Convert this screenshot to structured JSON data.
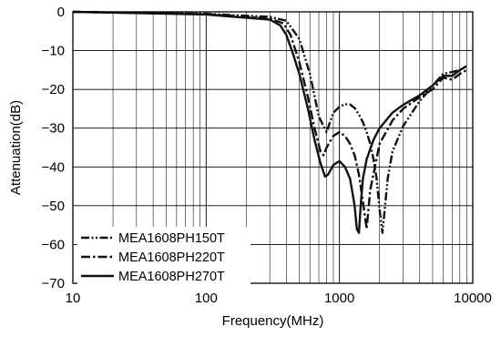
{
  "chart_data": {
    "type": "line",
    "title": "",
    "xlabel": "Frequency(MHz)",
    "ylabel": "Attenuation(dB)",
    "x_scale": "log",
    "xlim": [
      10,
      10000
    ],
    "ylim": [
      -70,
      0
    ],
    "x_ticks": [
      10,
      100,
      1000,
      10000
    ],
    "x_tick_labels": [
      "10",
      "100",
      "1000",
      "10000"
    ],
    "y_ticks": [
      0,
      -10,
      -20,
      -30,
      -40,
      -50,
      -60,
      -70
    ],
    "y_tick_labels": [
      "0",
      "−10",
      "−20",
      "−30",
      "−40",
      "−50",
      "−60",
      "−70"
    ],
    "grid": true,
    "legend_position": "bottom-left",
    "series": [
      {
        "name": "MEA1608PH150T",
        "line_style": "dash-dot-dot",
        "x": [
          10,
          100,
          300,
          400,
          500,
          600,
          700,
          800,
          900,
          1000,
          1100,
          1200,
          1300,
          1400,
          1500,
          1600,
          1700,
          1800,
          1900,
          2000,
          2100,
          2200,
          2300,
          2500,
          3000,
          3500,
          4000,
          4500,
          5000,
          6000,
          7000,
          8000,
          9000
        ],
        "y": [
          0,
          -0.5,
          -1.3,
          -2.3,
          -7,
          -16,
          -27,
          -31,
          -26,
          -24.5,
          -23.8,
          -23.9,
          -24.8,
          -26.5,
          -28.5,
          -31,
          -34,
          -38,
          -43,
          -51,
          -57,
          -50,
          -43,
          -36,
          -29.5,
          -26,
          -23,
          -21,
          -19,
          -16,
          -15.5,
          -15,
          -14
        ]
      },
      {
        "name": "MEA1608PH220T",
        "line_style": "dash-dot",
        "x": [
          10,
          100,
          300,
          380,
          430,
          500,
          580,
          650,
          720,
          760,
          800,
          900,
          1000,
          1100,
          1200,
          1300,
          1400,
          1500,
          1600,
          1700,
          2000,
          2500,
          3000,
          4000,
          5000,
          6000,
          7000,
          8000,
          9000
        ],
        "y": [
          0,
          -0.6,
          -1.7,
          -3,
          -6,
          -13,
          -22,
          -30,
          -36,
          -37,
          -35,
          -32,
          -31,
          -32,
          -34,
          -37,
          -42,
          -49,
          -56,
          -46,
          -34,
          -28,
          -25,
          -22,
          -20,
          -17,
          -17.5,
          -16,
          -15
        ]
      },
      {
        "name": "MEA1608PH270T",
        "line_style": "solid",
        "x": [
          10,
          100,
          300,
          360,
          400,
          450,
          500,
          580,
          650,
          720,
          780,
          820,
          900,
          1000,
          1100,
          1200,
          1300,
          1350,
          1400,
          1450,
          1500,
          1600,
          1800,
          2000,
          2500,
          3000,
          4000,
          5000,
          6000,
          7000,
          8000,
          9000
        ],
        "y": [
          0,
          -0.7,
          -2,
          -3.5,
          -6,
          -11,
          -16,
          -25,
          -33,
          -39,
          -42.5,
          -42,
          -39.5,
          -38.5,
          -40,
          -43,
          -50,
          -56,
          -57,
          -49,
          -43,
          -38,
          -33,
          -30,
          -26,
          -24,
          -21.5,
          -19,
          -16.5,
          -16.5,
          -15,
          -14
        ]
      }
    ]
  }
}
